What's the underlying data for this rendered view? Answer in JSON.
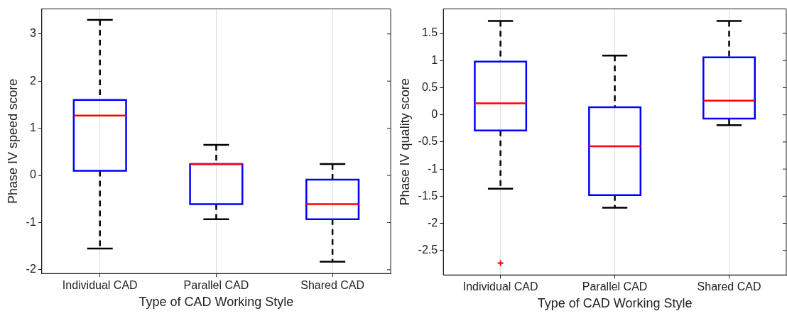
{
  "chart_data": [
    {
      "type": "box",
      "categories": [
        "Individual CAD",
        "Parallel CAD",
        "Shared CAD"
      ],
      "xlabel": "Type of CAD Working Style",
      "ylabel": "Phase IV speed score",
      "ylim": [
        -2.08,
        3.53
      ],
      "yticks": [
        -2,
        -1,
        0,
        1,
        2,
        3
      ],
      "grid": "x",
      "boxes": [
        {
          "low": -1.55,
          "q1": 0.1,
          "median": 1.27,
          "q3": 1.6,
          "high": 3.3
        },
        {
          "low": -0.93,
          "q1": -0.61,
          "median": 0.24,
          "q3": 0.24,
          "high": 0.65
        },
        {
          "low": -1.83,
          "q1": -0.93,
          "median": -0.61,
          "q3": -0.09,
          "high": 0.24
        }
      ]
    },
    {
      "type": "box",
      "categories": [
        "Individual CAD",
        "Parallel CAD",
        "Shared CAD"
      ],
      "xlabel": "Type of CAD Working Style",
      "ylabel": "Phase IV quality score",
      "ylim": [
        -2.95,
        1.95
      ],
      "yticks": [
        -2.5,
        -2,
        -1.5,
        -1,
        -0.5,
        0,
        0.5,
        1,
        1.5
      ],
      "grid": "x",
      "boxes": [
        {
          "low": -1.36,
          "q1": -0.29,
          "median": 0.21,
          "q3": 0.98,
          "high": 1.73,
          "outliers": [
            -2.73
          ]
        },
        {
          "low": -1.71,
          "q1": -1.48,
          "median": -0.58,
          "q3": 0.14,
          "high": 1.09
        },
        {
          "low": -0.19,
          "q1": -0.07,
          "median": 0.26,
          "q3": 1.06,
          "high": 1.73
        }
      ]
    }
  ]
}
